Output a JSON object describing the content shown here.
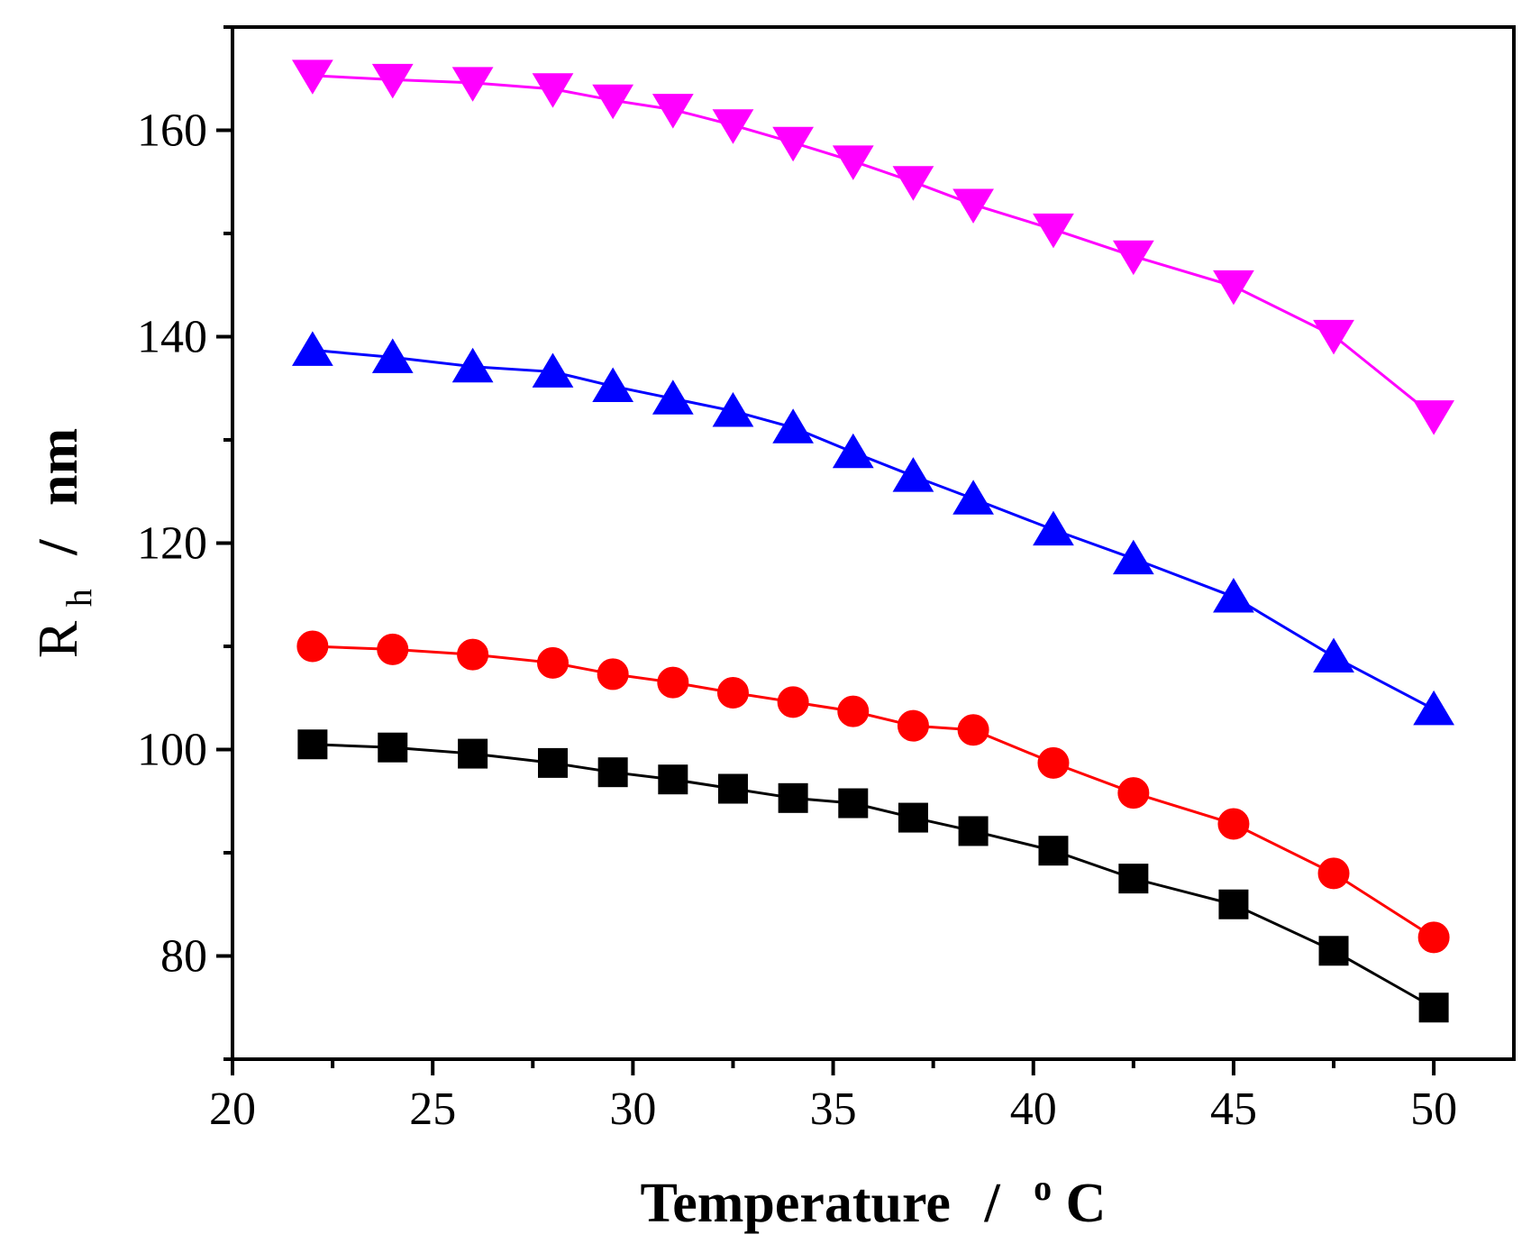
{
  "chart_data": {
    "type": "line",
    "title": "",
    "xlabel": {
      "main": "Temperature",
      "separator": "/",
      "sup": "o",
      "unit": "C"
    },
    "ylabel": {
      "main": "R",
      "sub": "h",
      "separator": "/",
      "unit": "nm"
    },
    "xlim": [
      20,
      52
    ],
    "ylim": [
      70,
      170
    ],
    "xticks": [
      20,
      25,
      30,
      35,
      40,
      45,
      50
    ],
    "yticks": [
      80,
      100,
      120,
      140,
      160
    ],
    "grid": false,
    "legend": "none",
    "series": [
      {
        "name": "series-black-square",
        "color": "#000000",
        "marker": "square",
        "x": [
          22,
          24,
          26,
          28,
          29.5,
          31,
          32.5,
          34,
          35.5,
          37,
          38.5,
          40.5,
          42.5,
          45,
          47.5,
          50
        ],
        "y": [
          100.5,
          100.2,
          99.6,
          98.7,
          97.8,
          97.1,
          96.2,
          95.3,
          94.8,
          93.4,
          92.1,
          90.2,
          87.5,
          85,
          80.5,
          75
        ]
      },
      {
        "name": "series-red-circle",
        "color": "#ff0000",
        "marker": "circle",
        "x": [
          22,
          24,
          26,
          28,
          29.5,
          31,
          32.5,
          34,
          35.5,
          37,
          38.5,
          40.5,
          42.5,
          45,
          47.5,
          50
        ],
        "y": [
          110,
          109.7,
          109.2,
          108.4,
          107.3,
          106.5,
          105.5,
          104.6,
          103.7,
          102.3,
          101.9,
          98.7,
          95.8,
          92.8,
          88,
          81.8
        ]
      },
      {
        "name": "series-blue-triangle-up",
        "color": "#0000ff",
        "marker": "triangle-up",
        "x": [
          22,
          24,
          26,
          28,
          29.5,
          31,
          32.5,
          34,
          35.5,
          37,
          38.5,
          40.5,
          42.5,
          45,
          47.5,
          50
        ],
        "y": [
          138.7,
          138,
          137.1,
          136.6,
          135.2,
          134,
          132.8,
          131.2,
          128.8,
          126.5,
          124.3,
          121.3,
          118.5,
          114.8,
          109,
          103.9
        ]
      },
      {
        "name": "series-magenta-triangle-down",
        "color": "#ff00ff",
        "marker": "triangle-down",
        "x": [
          22,
          24,
          26,
          28,
          29.5,
          31,
          32.5,
          34,
          35.5,
          37,
          38.5,
          40.5,
          42.5,
          45,
          47.5,
          50
        ],
        "y": [
          165.3,
          164.9,
          164.6,
          164,
          162.9,
          162,
          160.5,
          158.8,
          157,
          155,
          152.8,
          150.4,
          147.8,
          144.9,
          140.1,
          132.3
        ]
      }
    ]
  }
}
